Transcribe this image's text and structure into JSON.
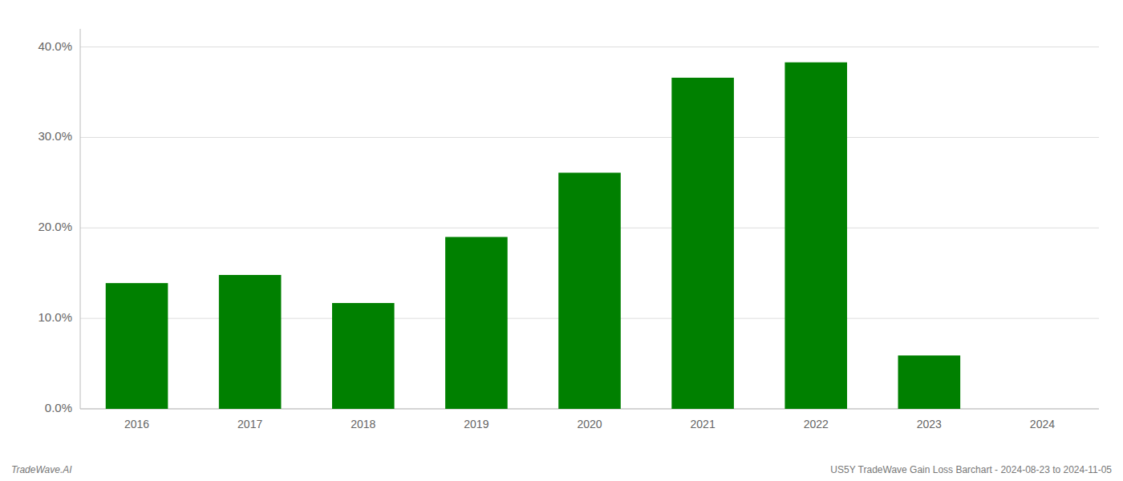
{
  "chart_data": {
    "type": "bar",
    "categories": [
      "2016",
      "2017",
      "2018",
      "2019",
      "2020",
      "2021",
      "2022",
      "2023",
      "2024"
    ],
    "values": [
      0.139,
      0.148,
      0.117,
      0.19,
      0.261,
      0.366,
      0.383,
      0.059,
      0.0
    ],
    "color": "#008000",
    "ylim": [
      0,
      0.42
    ],
    "yticks": [
      {
        "value": 0.0,
        "label": "0.0%"
      },
      {
        "value": 0.1,
        "label": "10.0%"
      },
      {
        "value": 0.2,
        "label": "20.0%"
      },
      {
        "value": 0.3,
        "label": "30.0%"
      },
      {
        "value": 0.4,
        "label": "40.0%"
      }
    ],
    "grid": true,
    "annotations": [
      "TradeWave.AI",
      "US5Y TradeWave Gain Loss Barchart - 2024-08-23 to 2024-11-05"
    ]
  }
}
